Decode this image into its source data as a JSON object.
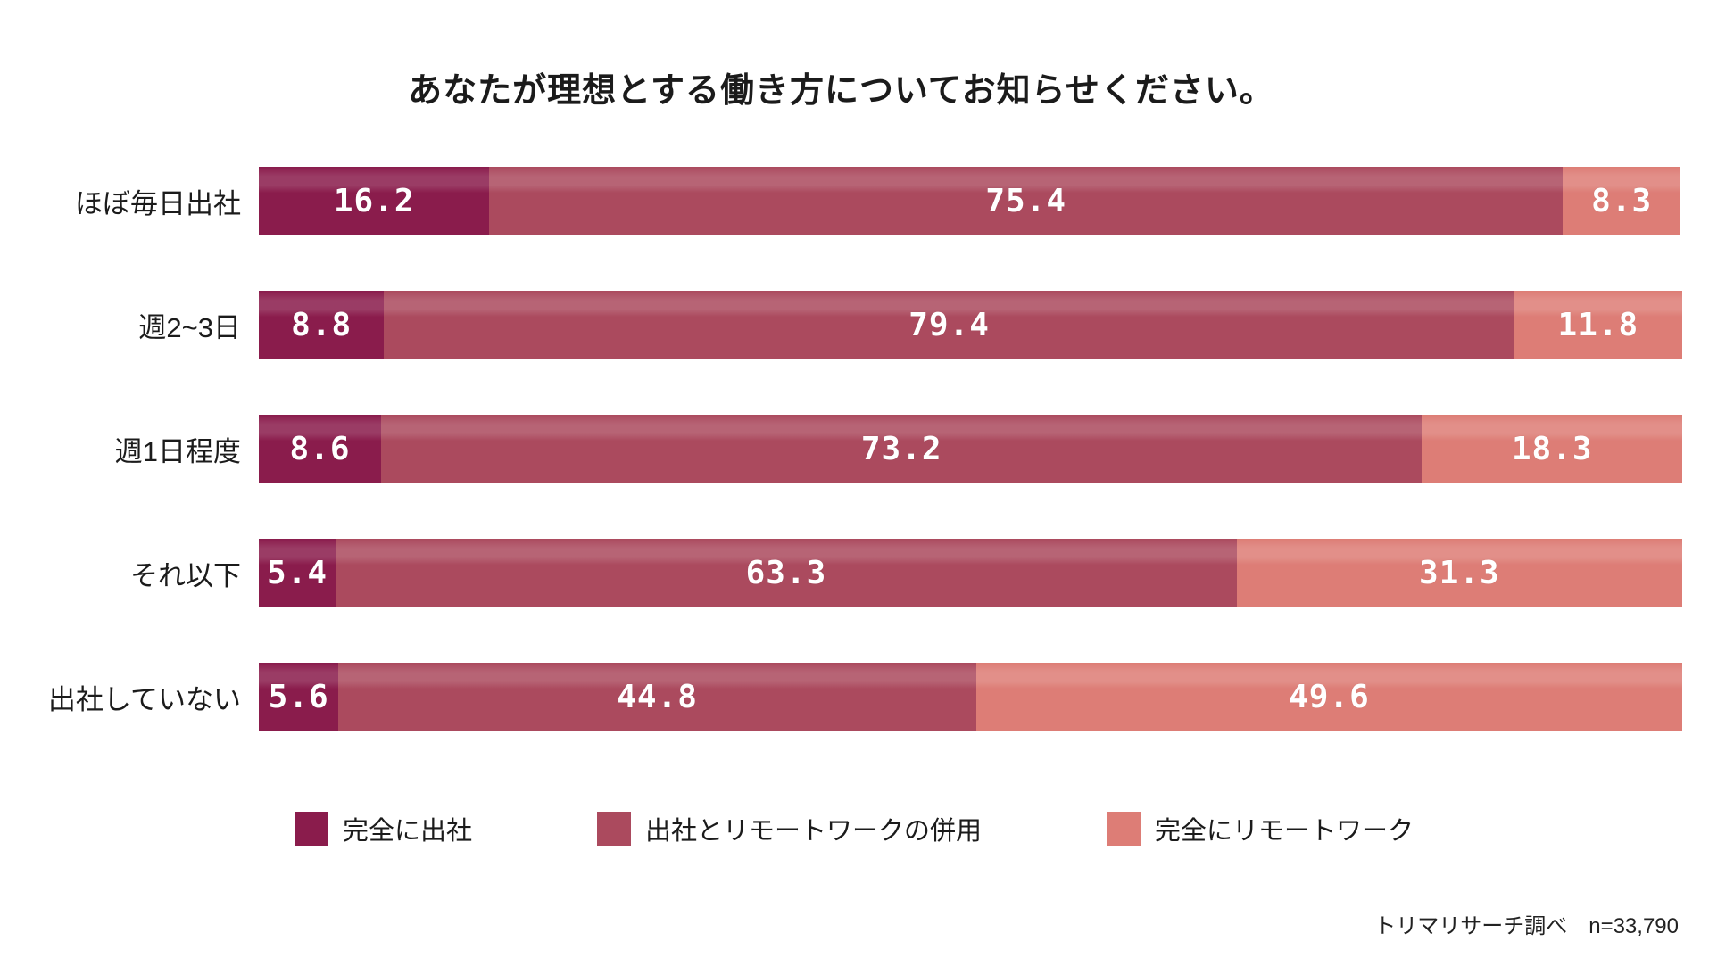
{
  "title": "あなたが理想とする働き方についてお知らせください。",
  "source_note": "トリマリサーチ調べ　n=33,790",
  "chart_data": {
    "type": "bar",
    "orientation": "horizontal",
    "stacked": true,
    "title": "あなたが理想とする働き方についてお知らせください。",
    "categories": [
      "ほぼ毎日出社",
      "週2~3日",
      "週1日程度",
      "それ以下",
      "出社していない"
    ],
    "series": [
      {
        "name": "完全に出社",
        "color": "#8a1c4c",
        "values": [
          16.2,
          8.8,
          8.6,
          5.4,
          5.6
        ]
      },
      {
        "name": "出社とリモートワークの併用",
        "color": "#ab4a5e",
        "values": [
          75.4,
          79.4,
          73.2,
          63.3,
          44.8
        ]
      },
      {
        "name": "完全にリモートワーク",
        "color": "#dd7d76",
        "values": [
          8.3,
          11.8,
          18.3,
          31.3,
          49.6
        ]
      }
    ],
    "xlim": [
      0,
      100
    ],
    "unit": "%",
    "value_labels": true,
    "grid": false,
    "legend_position": "bottom",
    "annotation": "トリマリサーチ調べ　n=33,790"
  }
}
